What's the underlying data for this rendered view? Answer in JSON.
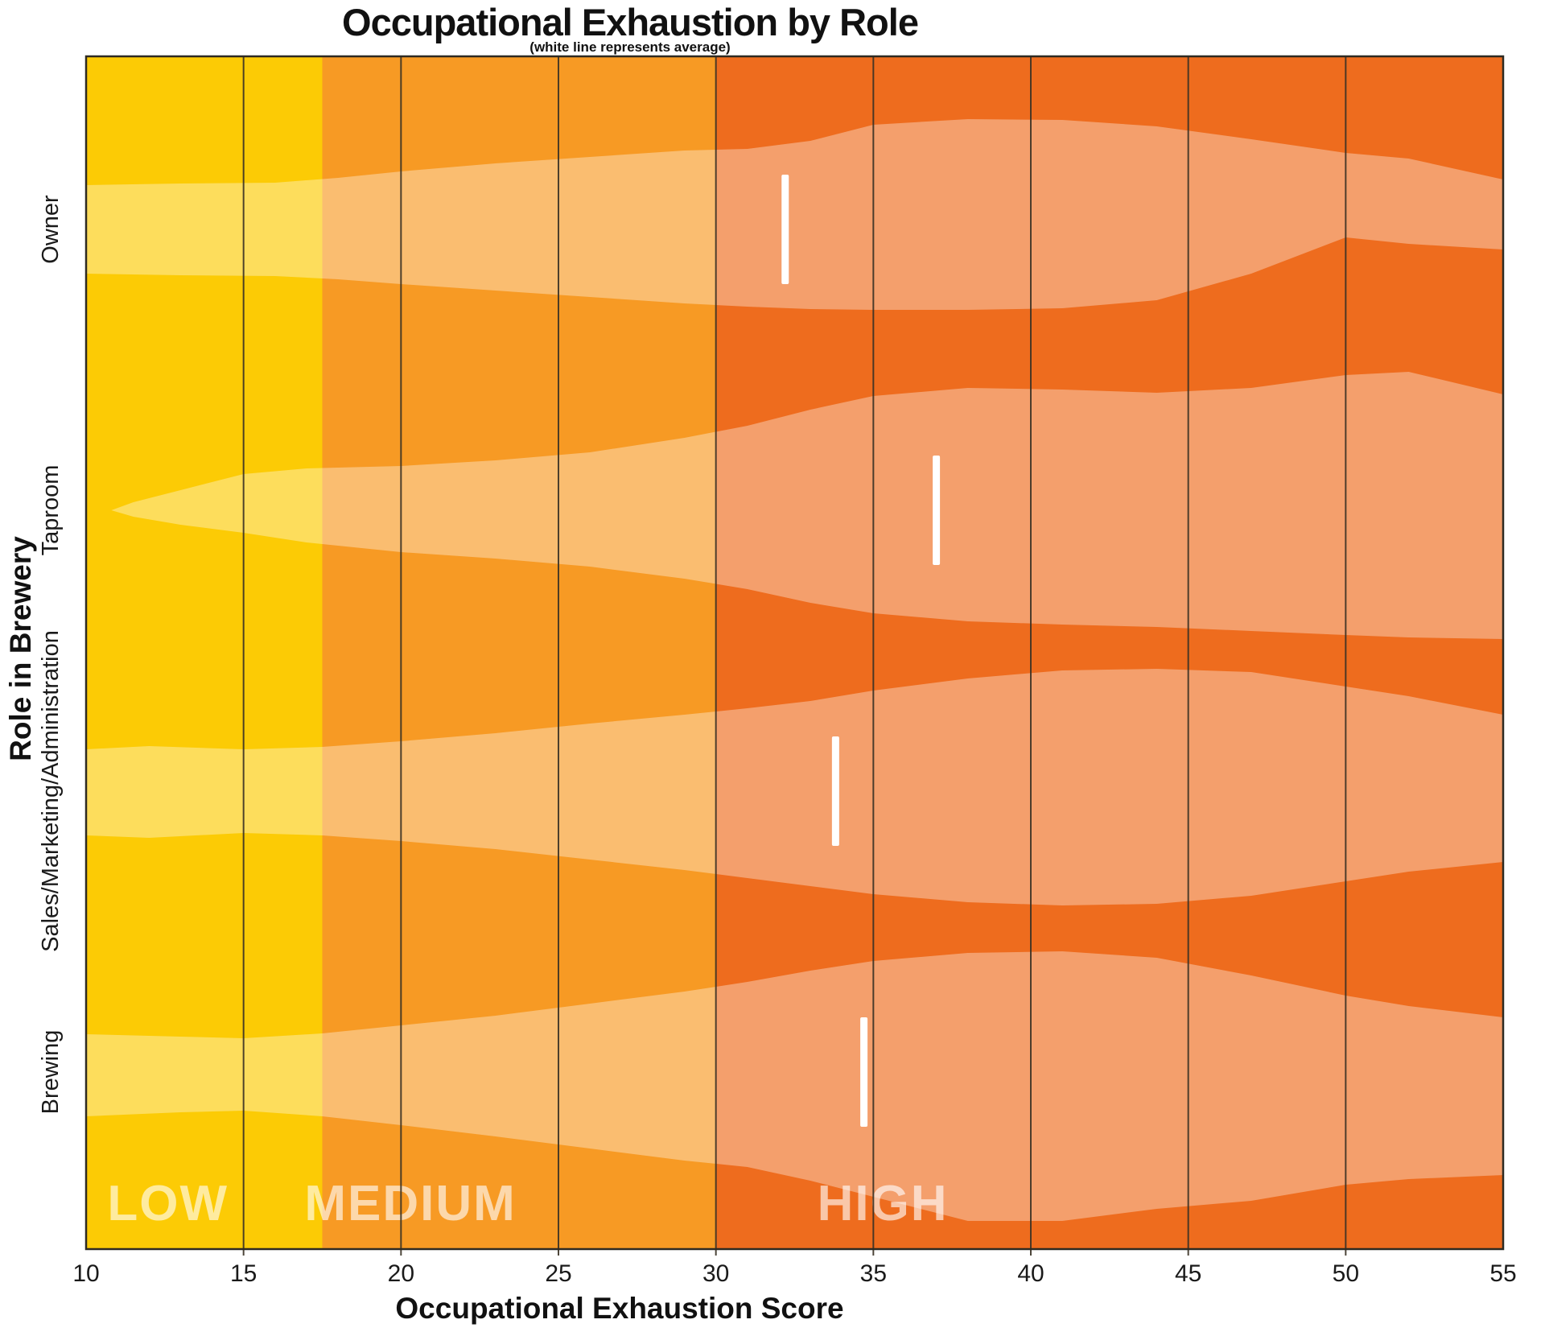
{
  "figure": {
    "title": "Occupational Exhaustion by Role",
    "subtitle": "(white line represents average)",
    "xlabel": "Occupational Exhaustion Score",
    "ylabel": "Role in Brewery"
  },
  "chart_data": {
    "type": "violin",
    "orientation": "horizontal",
    "title": "Occupational Exhaustion by Role",
    "subtitle": "(white line represents average)",
    "xlabel": "Occupational Exhaustion Score",
    "ylabel": "Role in Brewery",
    "xlim": [
      10,
      55
    ],
    "x_ticks": [
      10,
      15,
      20,
      25,
      30,
      35,
      40,
      45,
      50,
      55
    ],
    "grid": "vertical gridlines at scores 15,20,25,30,35,40,45,50",
    "gridline_values": [
      15,
      20,
      25,
      30,
      35,
      40,
      45,
      50
    ],
    "gridline_color": "#3a3225",
    "background_zones": [
      {
        "label": "LOW",
        "from": 10,
        "to": 17.5,
        "color": "#FCCB05",
        "label_x": 12.6
      },
      {
        "label": "MEDIUM",
        "from": 17.5,
        "to": 30,
        "color": "#F79A24",
        "label_x": 20.3
      },
      {
        "label": "HIGH",
        "from": 30,
        "to": 55,
        "color": "#EE6C1E",
        "label_x": 35.3
      }
    ],
    "zone_label_color": "rgba(255,255,255,0.62)",
    "violin_fill": "rgba(255,255,255,0.35)",
    "avg_line_color": "#FFFFFF",
    "categories": [
      "Owner",
      "Taproom",
      "Sales/Marketing/Administration",
      "Brewing"
    ],
    "series": [
      {
        "name": "Owner",
        "average": 32.2,
        "profile": {
          "x": [
            10,
            13,
            16,
            18,
            20,
            23,
            26,
            29,
            31,
            33,
            35,
            38,
            41,
            44,
            47,
            50,
            52,
            55
          ],
          "upper": [
            55,
            57,
            58,
            64,
            72,
            82,
            90,
            98,
            100,
            110,
            130,
            137,
            136,
            128,
            112,
            95,
            88,
            62
          ],
          "lower": [
            55,
            57,
            58,
            62,
            68,
            76,
            84,
            92,
            96,
            99,
            100,
            100,
            98,
            88,
            55,
            10,
            18,
            25
          ]
        }
      },
      {
        "name": "Taproom",
        "average": 37.0,
        "profile": {
          "x": [
            10.8,
            11.5,
            13,
            15,
            17,
            20,
            23,
            26,
            29,
            31,
            33,
            35,
            38,
            41,
            44,
            47,
            50,
            52,
            55
          ],
          "upper": [
            0,
            10,
            25,
            45,
            52,
            55,
            62,
            72,
            90,
            105,
            125,
            142,
            152,
            150,
            146,
            152,
            168,
            172,
            144
          ],
          "lower": [
            0,
            8,
            18,
            28,
            40,
            52,
            60,
            70,
            85,
            98,
            115,
            128,
            138,
            142,
            145,
            150,
            155,
            158,
            160
          ]
        }
      },
      {
        "name": "Sales/Marketing/Administration",
        "average": 33.8,
        "profile": {
          "x": [
            10,
            12,
            15,
            17.5,
            20,
            23,
            26,
            29,
            31,
            33,
            35,
            38,
            41,
            44,
            47,
            50,
            52,
            55
          ],
          "upper": [
            52,
            56,
            52,
            55,
            62,
            72,
            84,
            95,
            103,
            112,
            125,
            140,
            150,
            152,
            148,
            130,
            118,
            95
          ],
          "lower": [
            55,
            58,
            52,
            55,
            62,
            72,
            85,
            98,
            108,
            118,
            128,
            138,
            142,
            140,
            130,
            112,
            100,
            88
          ]
        }
      },
      {
        "name": "Brewing",
        "average": 34.7,
        "profile": {
          "x": [
            10,
            13,
            15,
            17.5,
            20,
            23,
            26,
            29,
            31,
            33,
            35,
            38,
            41,
            44,
            47,
            50,
            52,
            55
          ],
          "upper": [
            47,
            44,
            42,
            48,
            58,
            70,
            85,
            100,
            112,
            126,
            138,
            148,
            150,
            142,
            120,
            95,
            82,
            68
          ],
          "lower": [
            55,
            50,
            48,
            55,
            66,
            80,
            95,
            110,
            118,
            135,
            155,
            185,
            185,
            170,
            160,
            140,
            133,
            128
          ]
        }
      }
    ]
  }
}
